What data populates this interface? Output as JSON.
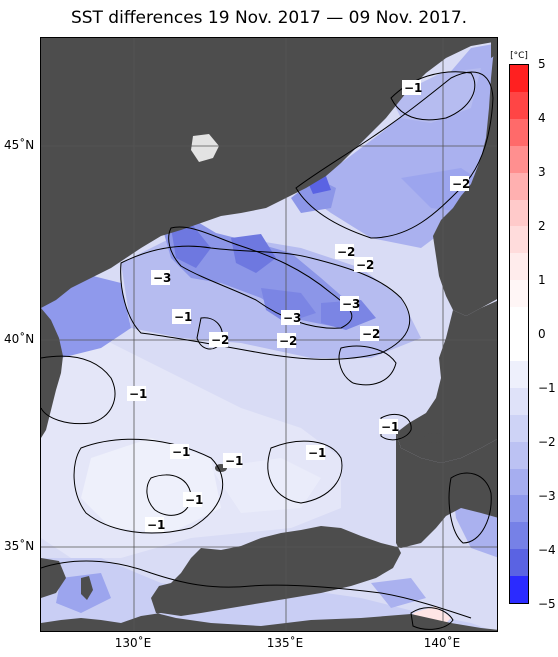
{
  "title": "SST differences 19 Nov. 2017 — 09 Nov. 2017.",
  "colors": {
    "land": "#4d4d4d",
    "sea_base": "#d9dcf5",
    "grid": "#555555",
    "contour": "#000000"
  },
  "lat_labels": [
    "45˚N",
    "40˚N",
    "35˚N"
  ],
  "lon_labels": [
    "130˚E",
    "135˚E",
    "140˚E"
  ],
  "colorbar": {
    "unit": "[°C]",
    "ticks": [
      "5",
      "4",
      "3",
      "2",
      "1",
      "0",
      "−1",
      "−2",
      "−3",
      "−4",
      "−5"
    ],
    "colors": [
      "#ff2020",
      "#ff4545",
      "#ff6a6a",
      "#ff8f8f",
      "#ffb0b0",
      "#ffcaca",
      "#ffdcdc",
      "#ffecec",
      "#fff6f6",
      "#ffffff",
      "#ffffff",
      "#eef0fc",
      "#dfe2f9",
      "#ced3f6",
      "#bcc2f3",
      "#a6aef0",
      "#8f99ec",
      "#7681e7",
      "#5a63e3",
      "#2b2bff"
    ]
  },
  "contour_labels": [
    {
      "text": "−1"
    },
    {
      "text": "−2"
    },
    {
      "text": "−2"
    },
    {
      "text": "−2"
    },
    {
      "text": "−3"
    },
    {
      "text": "−1"
    },
    {
      "text": "−3"
    },
    {
      "text": "−3"
    },
    {
      "text": "−2"
    },
    {
      "text": "−2"
    },
    {
      "text": "−2"
    },
    {
      "text": "−1"
    },
    {
      "text": "−1"
    },
    {
      "text": "−1"
    },
    {
      "text": "−1"
    },
    {
      "text": "−1"
    },
    {
      "text": "−1"
    },
    {
      "text": "−1"
    }
  ]
}
